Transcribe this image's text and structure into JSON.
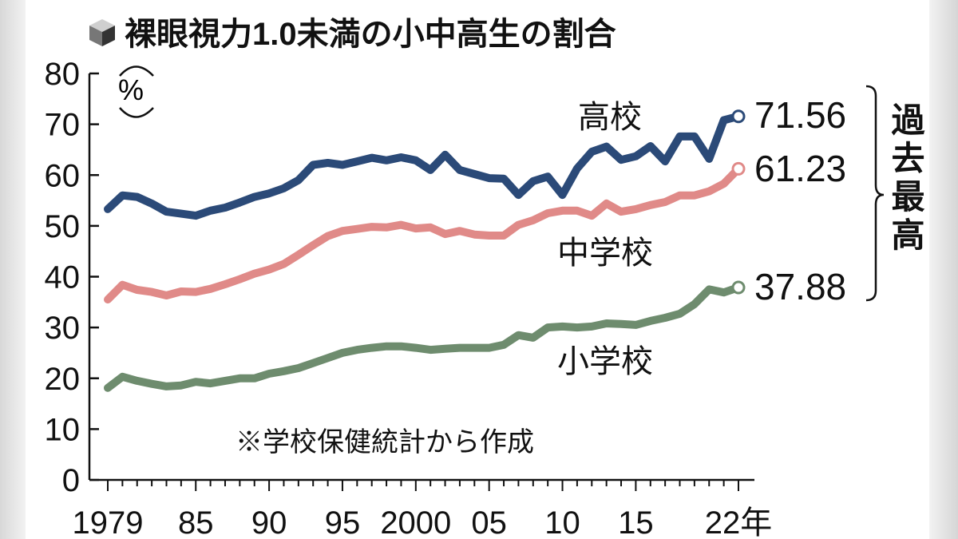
{
  "chart_data": {
    "type": "line",
    "title": "裸眼視力1.0未満の小中高生の割合",
    "ylabel": "%",
    "xlabel": "",
    "ylim": [
      0,
      80
    ],
    "yticks": [
      0,
      10,
      20,
      30,
      40,
      50,
      60,
      70,
      80
    ],
    "xlim": [
      1979,
      2022
    ],
    "xtick_labels": [
      {
        "year": 1979,
        "label": "1979"
      },
      {
        "year": 1985,
        "label": "85"
      },
      {
        "year": 1990,
        "label": "90"
      },
      {
        "year": 1995,
        "label": "95"
      },
      {
        "year": 2000,
        "label": "2000"
      },
      {
        "year": 2005,
        "label": "05"
      },
      {
        "year": 2010,
        "label": "10"
      },
      {
        "year": 2015,
        "label": "15"
      },
      {
        "year": 2022,
        "label": "22年"
      }
    ],
    "x": [
      1979,
      1980,
      1981,
      1982,
      1983,
      1984,
      1985,
      1986,
      1987,
      1988,
      1989,
      1990,
      1991,
      1992,
      1993,
      1994,
      1995,
      1996,
      1997,
      1998,
      1999,
      2000,
      2001,
      2002,
      2003,
      2004,
      2005,
      2006,
      2007,
      2008,
      2009,
      2010,
      2011,
      2012,
      2013,
      2014,
      2015,
      2016,
      2017,
      2018,
      2019,
      2020,
      2021,
      2022
    ],
    "series": [
      {
        "name": "高校",
        "color": "#2b4a78",
        "end_label": "71.56",
        "values": [
          53.3,
          56,
          55.7,
          54.4,
          52.8,
          52.4,
          52,
          53,
          53.6,
          54.6,
          55.7,
          56.4,
          57.4,
          59,
          62,
          62.4,
          62,
          62.7,
          63.4,
          62.9,
          63.5,
          62.9,
          61,
          64,
          61,
          60.2,
          59.4,
          59.3,
          56.1,
          58.8,
          59.7,
          56.1,
          61.3,
          64.6,
          65.6,
          63,
          63.7,
          65.7,
          62.7,
          67.6,
          67.6,
          63.2,
          70.8,
          71.56
        ]
      },
      {
        "name": "中学校",
        "color": "#e08a88",
        "end_label": "61.23",
        "values": [
          35.5,
          38.4,
          37.4,
          37,
          36.3,
          37.1,
          37,
          37.6,
          38.5,
          39.5,
          40.6,
          41.4,
          42.5,
          44.3,
          46.2,
          48,
          49,
          49.4,
          49.8,
          49.7,
          50.2,
          49.5,
          49.7,
          48.4,
          49,
          48.3,
          48.1,
          48.1,
          50.2,
          51.1,
          52.5,
          53,
          53,
          52,
          54.4,
          52.8,
          53.3,
          54.1,
          54.7,
          56,
          56,
          56.8,
          58.3,
          61.23
        ]
      },
      {
        "name": "小学校",
        "color": "#6e8c6e",
        "end_label": "37.88",
        "values": [
          18.1,
          20.3,
          19.5,
          18.9,
          18.4,
          18.6,
          19.3,
          19,
          19.5,
          20,
          20,
          20.9,
          21.4,
          22,
          23,
          24,
          25,
          25.6,
          26,
          26.3,
          26.3,
          26,
          25.6,
          25.8,
          26,
          26,
          26,
          26.6,
          28.5,
          28,
          30,
          30.2,
          30,
          30.2,
          30.8,
          30.7,
          30.5,
          31.3,
          31.9,
          32.7,
          34.6,
          37.5,
          36.9,
          37.88
        ]
      }
    ],
    "annotation_bracket": "過去最高",
    "source_note": "※学校保健統計から作成",
    "grid": false,
    "legend": "inline labels"
  }
}
